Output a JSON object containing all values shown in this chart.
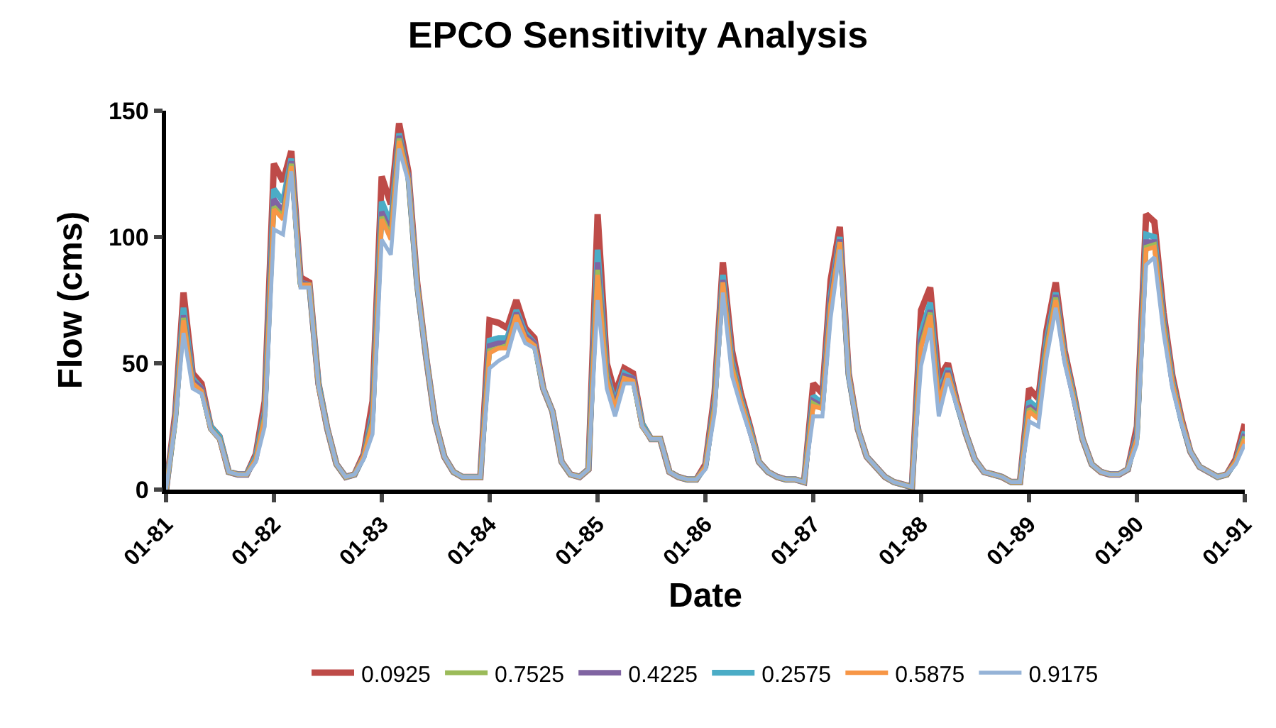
{
  "chart_data": {
    "type": "line",
    "title": "EPCO Sensitivity Analysis",
    "xlabel": "Date",
    "ylabel": "Flow (cms)",
    "x": [
      "1981-01",
      "1981-02",
      "1981-03",
      "1981-04",
      "1981-05",
      "1981-06",
      "1981-07",
      "1981-08",
      "1981-09",
      "1981-10",
      "1981-11",
      "1981-12",
      "1982-01",
      "1982-02",
      "1982-03",
      "1982-04",
      "1982-05",
      "1982-06",
      "1982-07",
      "1982-08",
      "1982-09",
      "1982-10",
      "1982-11",
      "1982-12",
      "1983-01",
      "1983-02",
      "1983-03",
      "1983-04",
      "1983-05",
      "1983-06",
      "1983-07",
      "1983-08",
      "1983-09",
      "1983-10",
      "1983-11",
      "1983-12",
      "1984-01",
      "1984-02",
      "1984-03",
      "1984-04",
      "1984-05",
      "1984-06",
      "1984-07",
      "1984-08",
      "1984-09",
      "1984-10",
      "1984-11",
      "1984-12",
      "1985-01",
      "1985-02",
      "1985-03",
      "1985-04",
      "1985-05",
      "1985-06",
      "1985-07",
      "1985-08",
      "1985-09",
      "1985-10",
      "1985-11",
      "1985-12",
      "1986-01",
      "1986-02",
      "1986-03",
      "1986-04",
      "1986-05",
      "1986-06",
      "1986-07",
      "1986-08",
      "1986-09",
      "1986-10",
      "1986-11",
      "1986-12",
      "1987-01",
      "1987-02",
      "1987-03",
      "1987-04",
      "1987-05",
      "1987-06",
      "1987-07",
      "1987-08",
      "1987-09",
      "1987-10",
      "1987-11",
      "1987-12",
      "1988-01",
      "1988-02",
      "1988-03",
      "1988-04",
      "1988-05",
      "1988-06",
      "1988-07",
      "1988-08",
      "1988-09",
      "1988-10",
      "1988-11",
      "1988-12",
      "1989-01",
      "1989-02",
      "1989-03",
      "1989-04",
      "1989-05",
      "1989-06",
      "1989-07",
      "1989-08",
      "1989-09",
      "1989-10",
      "1989-11",
      "1989-12",
      "1990-01",
      "1990-02",
      "1990-03",
      "1990-04",
      "1990-05",
      "1990-06",
      "1990-07",
      "1990-08",
      "1990-09",
      "1990-10",
      "1990-11",
      "1990-12",
      "1991-01"
    ],
    "series": [
      {
        "name": "0.0925",
        "color": "#be4b48",
        "values": [
          0,
          30,
          78,
          46,
          42,
          25,
          21,
          7,
          6,
          6,
          14,
          35,
          129,
          122,
          134,
          84,
          82,
          42,
          24,
          10,
          5,
          6,
          14,
          35,
          124,
          113,
          145,
          126,
          82,
          52,
          27,
          13,
          7,
          5,
          5,
          5,
          67,
          66,
          64,
          75,
          64,
          60,
          40,
          31,
          11,
          6,
          5,
          8,
          109,
          50,
          38,
          48,
          46,
          26,
          20,
          20,
          7,
          5,
          4,
          4,
          10,
          38,
          90,
          55,
          38,
          25,
          11,
          7,
          5,
          4,
          4,
          3,
          42,
          38,
          83,
          104,
          46,
          24,
          13,
          9,
          5,
          3,
          2,
          1,
          71,
          80,
          44,
          50,
          35,
          22,
          12,
          7,
          6,
          5,
          3,
          3,
          40,
          36,
          63,
          82,
          55,
          38,
          20,
          10,
          7,
          6,
          6,
          8,
          25,
          109,
          106,
          70,
          45,
          28,
          15,
          9,
          7,
          5,
          6,
          12,
          26
        ]
      },
      {
        "name": "0.7525",
        "color": "#9bbb59",
        "values": [
          0,
          27,
          68,
          42,
          39,
          24,
          20,
          7,
          6,
          6,
          12,
          29,
          112,
          108,
          129,
          81,
          81,
          41,
          24,
          10,
          5,
          6,
          13,
          27,
          108,
          100,
          139,
          123,
          81,
          52,
          27,
          13,
          7,
          5,
          5,
          5,
          55,
          56,
          57,
          69,
          60,
          57,
          40,
          31,
          11,
          6,
          5,
          8,
          87,
          44,
          32,
          44,
          43,
          25,
          20,
          20,
          7,
          5,
          4,
          4,
          9,
          33,
          82,
          49,
          35,
          23,
          11,
          7,
          5,
          4,
          4,
          3,
          34,
          32,
          73,
          98,
          45,
          24,
          13,
          9,
          5,
          3,
          2,
          1,
          57,
          70,
          34,
          46,
          34,
          22,
          12,
          7,
          6,
          5,
          3,
          3,
          32,
          29,
          56,
          76,
          52,
          36,
          20,
          10,
          7,
          6,
          6,
          8,
          20,
          96,
          97,
          65,
          42,
          27,
          15,
          9,
          7,
          5,
          6,
          11,
          21
        ]
      },
      {
        "name": "0.4225",
        "color": "#8064a2",
        "values": [
          0,
          28,
          69,
          43,
          40,
          24,
          20,
          7,
          6,
          6,
          12,
          30,
          115,
          110,
          130,
          82,
          81,
          41,
          24,
          10,
          5,
          6,
          13,
          28,
          110,
          102,
          140,
          124,
          81,
          52,
          27,
          13,
          7,
          5,
          5,
          5,
          57,
          58,
          58,
          70,
          61,
          58,
          40,
          31,
          11,
          6,
          5,
          8,
          90,
          45,
          33,
          45,
          44,
          25,
          20,
          20,
          7,
          5,
          4,
          4,
          9,
          34,
          83,
          50,
          35,
          23,
          11,
          7,
          5,
          4,
          4,
          3,
          35,
          33,
          75,
          99,
          45,
          24,
          13,
          9,
          5,
          3,
          2,
          1,
          59,
          71,
          36,
          47,
          34,
          22,
          12,
          7,
          6,
          5,
          3,
          3,
          33,
          30,
          57,
          77,
          52,
          36,
          20,
          10,
          7,
          6,
          6,
          8,
          21,
          98,
          98,
          66,
          42,
          27,
          15,
          9,
          7,
          5,
          6,
          11,
          22
        ]
      },
      {
        "name": "0.2575",
        "color": "#4bacc6",
        "values": [
          0,
          28,
          72,
          44,
          40,
          25,
          21,
          7,
          6,
          6,
          13,
          31,
          119,
          114,
          131,
          82,
          81,
          42,
          24,
          10,
          5,
          6,
          13,
          30,
          114,
          105,
          141,
          124,
          81,
          52,
          27,
          13,
          7,
          5,
          5,
          5,
          59,
          60,
          60,
          71,
          62,
          58,
          40,
          31,
          11,
          6,
          5,
          8,
          95,
          46,
          34,
          46,
          44,
          26,
          20,
          20,
          7,
          5,
          4,
          4,
          9,
          35,
          85,
          51,
          36,
          24,
          11,
          7,
          5,
          4,
          4,
          3,
          37,
          34,
          77,
          100,
          45,
          24,
          13,
          9,
          5,
          3,
          2,
          1,
          62,
          74,
          38,
          48,
          34,
          22,
          12,
          7,
          6,
          5,
          3,
          3,
          35,
          32,
          59,
          78,
          53,
          37,
          20,
          10,
          7,
          6,
          6,
          8,
          22,
          101,
          100,
          67,
          43,
          27,
          15,
          9,
          7,
          5,
          6,
          11,
          23
        ]
      },
      {
        "name": "0.5875",
        "color": "#f79646",
        "values": [
          0,
          27,
          67,
          42,
          39,
          24,
          20,
          7,
          6,
          6,
          12,
          28,
          111,
          107,
          128,
          81,
          81,
          41,
          24,
          10,
          5,
          6,
          13,
          26,
          107,
          99,
          138,
          123,
          81,
          52,
          27,
          13,
          7,
          5,
          5,
          5,
          54,
          56,
          56,
          69,
          60,
          57,
          40,
          31,
          11,
          6,
          5,
          8,
          85,
          43,
          32,
          44,
          43,
          25,
          20,
          20,
          7,
          5,
          4,
          4,
          9,
          32,
          82,
          48,
          35,
          23,
          11,
          7,
          5,
          4,
          4,
          3,
          33,
          32,
          73,
          98,
          45,
          24,
          13,
          9,
          5,
          3,
          2,
          1,
          56,
          69,
          34,
          46,
          34,
          22,
          12,
          7,
          6,
          5,
          3,
          3,
          31,
          28,
          55,
          75,
          52,
          36,
          20,
          10,
          7,
          6,
          6,
          8,
          20,
          95,
          96,
          64,
          42,
          27,
          15,
          9,
          7,
          5,
          6,
          11,
          20
        ]
      },
      {
        "name": "0.9175",
        "color": "#95b3d7",
        "values": [
          0,
          26,
          62,
          40,
          38,
          24,
          20,
          7,
          6,
          6,
          11,
          25,
          103,
          101,
          126,
          80,
          80,
          41,
          24,
          10,
          5,
          6,
          12,
          22,
          99,
          93,
          135,
          122,
          80,
          52,
          27,
          13,
          7,
          5,
          5,
          5,
          48,
          51,
          53,
          66,
          58,
          56,
          40,
          31,
          11,
          6,
          5,
          8,
          75,
          40,
          29,
          42,
          42,
          25,
          20,
          20,
          7,
          5,
          4,
          4,
          8,
          30,
          78,
          45,
          33,
          22,
          11,
          7,
          5,
          4,
          4,
          3,
          29,
          29,
          68,
          95,
          44,
          24,
          13,
          9,
          5,
          3,
          2,
          1,
          49,
          64,
          29,
          44,
          33,
          22,
          12,
          7,
          6,
          5,
          3,
          3,
          27,
          25,
          52,
          72,
          50,
          35,
          20,
          10,
          7,
          6,
          6,
          8,
          18,
          89,
          92,
          62,
          40,
          26,
          15,
          9,
          7,
          5,
          6,
          10,
          18
        ]
      }
    ],
    "xlim": [
      "1981-01",
      "1991-01"
    ],
    "xticks": [
      {
        "value": "1981-01",
        "label": "01-81"
      },
      {
        "value": "1982-01",
        "label": "01-82"
      },
      {
        "value": "1983-01",
        "label": "01-83"
      },
      {
        "value": "1984-01",
        "label": "01-84"
      },
      {
        "value": "1985-01",
        "label": "01-85"
      },
      {
        "value": "1986-01",
        "label": "01-86"
      },
      {
        "value": "1987-01",
        "label": "01-87"
      },
      {
        "value": "1988-01",
        "label": "01-88"
      },
      {
        "value": "1989-01",
        "label": "01-89"
      },
      {
        "value": "1990-01",
        "label": "01-90"
      },
      {
        "value": "1991-01",
        "label": "01-91"
      }
    ],
    "ylim": [
      0,
      150
    ],
    "yticks": [
      0,
      50,
      100,
      150
    ],
    "grid": false,
    "legend": "bottom"
  }
}
